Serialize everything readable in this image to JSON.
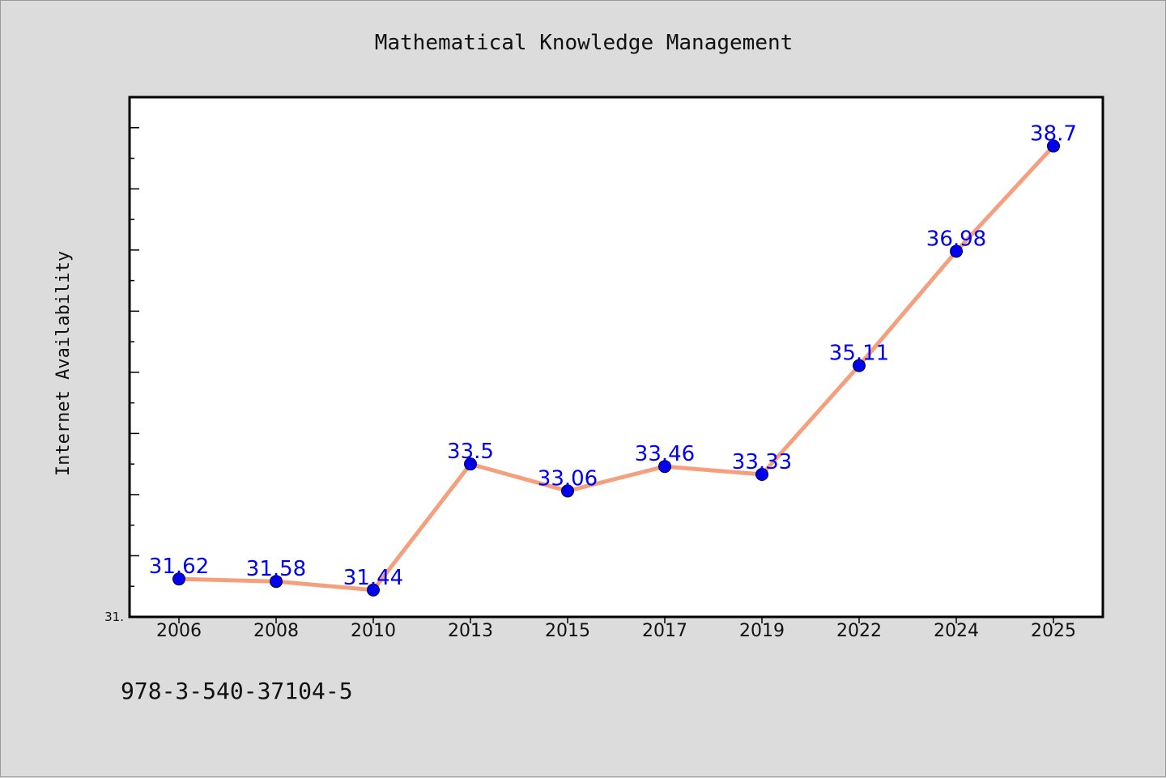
{
  "chart_data": {
    "type": "line",
    "title": "Mathematical Knowledge Management",
    "xlabel": "",
    "ylabel": "Internet Availability",
    "categories": [
      "2006",
      "2008",
      "2010",
      "2013",
      "2015",
      "2017",
      "2019",
      "2022",
      "2024",
      "2025"
    ],
    "values": [
      31.62,
      31.58,
      31.44,
      33.5,
      33.06,
      33.46,
      33.33,
      35.11,
      36.98,
      38.7
    ],
    "data_labels": [
      "31.62",
      "31.58",
      "31.44",
      "33.5",
      "33.06",
      "33.46",
      "33.33",
      "35.11",
      "36.98",
      "38.7"
    ],
    "ylim": [
      31.0,
      39.5
    ],
    "ytick_label_min": "31.",
    "line_color": "#f4a07e",
    "marker_color": "#0000ee",
    "label_color": "#0000ee",
    "grid": false,
    "legend": "none"
  },
  "footnote": "978-3-540-37104-5"
}
